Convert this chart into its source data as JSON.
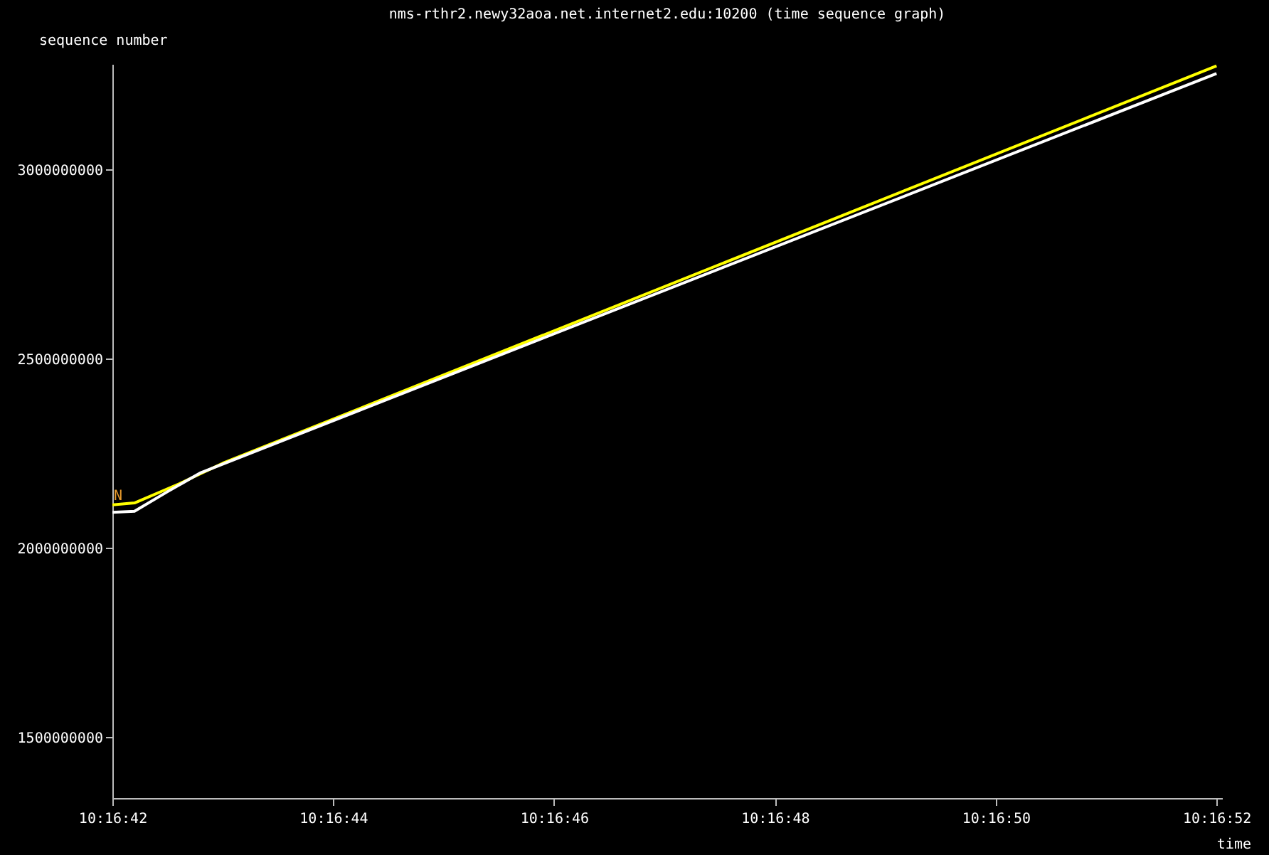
{
  "chart_data": {
    "type": "line",
    "title": "nms-rthr2.newy32aoa.net.internet2.edu:10200 (time sequence graph)",
    "xlabel": "time",
    "ylabel": "sequence number",
    "xlim": [
      10.2783333,
      10.281125
    ],
    "xticks": [
      {
        "value": 10.2783333,
        "label": "10:16:42"
      },
      {
        "value": 10.2788889,
        "label": "10:16:44"
      },
      {
        "value": 10.2794444,
        "label": "10:16:46"
      },
      {
        "value": 10.28,
        "label": "10:16:48"
      },
      {
        "value": 10.2805556,
        "label": "10:16:50"
      },
      {
        "value": 10.2811111,
        "label": "10:16:52"
      }
    ],
    "ylim": [
      1340000000,
      3280000000
    ],
    "yticks": [
      1500000000,
      2000000000,
      2500000000,
      3000000000
    ],
    "grid": false,
    "legend": false,
    "annotations": [
      {
        "text": "N",
        "x": 10.2783333,
        "y": 2120000000
      }
    ],
    "series": [
      {
        "color": "#ffff00",
        "x": [
          10.2783333,
          10.2783889,
          10.2785,
          10.2786111,
          10.2811111
        ],
        "values": [
          2115000000,
          2120000000,
          2170000000,
          2225000000,
          3275000000
        ]
      },
      {
        "color": "#ffffff",
        "x": [
          10.2783333,
          10.2783889,
          10.2784722,
          10.2785556,
          10.2811111
        ],
        "values": [
          2095000000,
          2098000000,
          2150000000,
          2200000000,
          3255000000
        ]
      }
    ]
  }
}
